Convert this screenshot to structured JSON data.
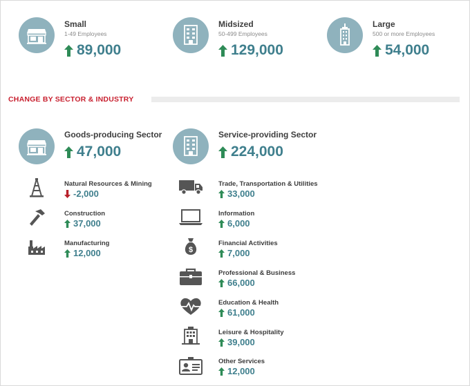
{
  "colors": {
    "accent": "#3f7f8d",
    "up": "#2e8b57",
    "down": "#b8202a",
    "section": "#c8202f",
    "circle": "#8fb2bd"
  },
  "size_groups": [
    {
      "title": "Small",
      "subtitle": "1-49 Employees",
      "value": "89,000",
      "direction": "up",
      "icon": "storefront-icon"
    },
    {
      "title": "Midsized",
      "subtitle": "50-499 Employees",
      "value": "129,000",
      "direction": "up",
      "icon": "office-building-icon"
    },
    {
      "title": "Large",
      "subtitle": "500 or more Employees",
      "value": "54,000",
      "direction": "up",
      "icon": "skyscraper-icon"
    }
  ],
  "section": {
    "title": "CHANGE BY SECTOR & INDUSTRY"
  },
  "sectors": [
    {
      "title": "Goods-producing Sector",
      "value": "47,000",
      "direction": "up",
      "icon": "storefront-icon",
      "industries": [
        {
          "label": "Natural Resources & Mining",
          "value": "-2,000",
          "direction": "down",
          "icon": "oil-derrick-icon"
        },
        {
          "label": "Construction",
          "value": "37,000",
          "direction": "up",
          "icon": "hammer-icon"
        },
        {
          "label": "Manufacturing",
          "value": "12,000",
          "direction": "up",
          "icon": "factory-icon"
        }
      ]
    },
    {
      "title": "Service-providing Sector",
      "value": "224,000",
      "direction": "up",
      "icon": "office-building-icon",
      "industries": [
        {
          "label": "Trade, Transportation & Utilities",
          "value": "33,000",
          "direction": "up",
          "icon": "truck-icon"
        },
        {
          "label": "Information",
          "value": "6,000",
          "direction": "up",
          "icon": "laptop-icon"
        },
        {
          "label": "Financial Activities",
          "value": "7,000",
          "direction": "up",
          "icon": "money-bag-icon"
        },
        {
          "label": "Professional & Business",
          "value": "66,000",
          "direction": "up",
          "icon": "briefcase-icon"
        },
        {
          "label": "Education & Health",
          "value": "61,000",
          "direction": "up",
          "icon": "heart-pulse-icon"
        },
        {
          "label": "Leisure & Hospitality",
          "value": "39,000",
          "direction": "up",
          "icon": "hotel-icon"
        },
        {
          "label": "Other Services",
          "value": "12,000",
          "direction": "up",
          "icon": "id-card-icon"
        }
      ]
    }
  ],
  "chart_data": {
    "type": "table",
    "rows": [
      {
        "group": "Small",
        "change": 89000
      },
      {
        "group": "Midsized",
        "change": 129000
      },
      {
        "group": "Large",
        "change": 54000
      },
      {
        "group": "Goods-producing Sector",
        "change": 47000
      },
      {
        "group": "Natural Resources & Mining",
        "change": -2000
      },
      {
        "group": "Construction",
        "change": 37000
      },
      {
        "group": "Manufacturing",
        "change": 12000
      },
      {
        "group": "Service-providing Sector",
        "change": 224000
      },
      {
        "group": "Trade, Transportation & Utilities",
        "change": 33000
      },
      {
        "group": "Information",
        "change": 6000
      },
      {
        "group": "Financial Activities",
        "change": 7000
      },
      {
        "group": "Professional & Business",
        "change": 66000
      },
      {
        "group": "Education & Health",
        "change": 61000
      },
      {
        "group": "Leisure & Hospitality",
        "change": 39000
      },
      {
        "group": "Other Services",
        "change": 12000
      }
    ]
  }
}
